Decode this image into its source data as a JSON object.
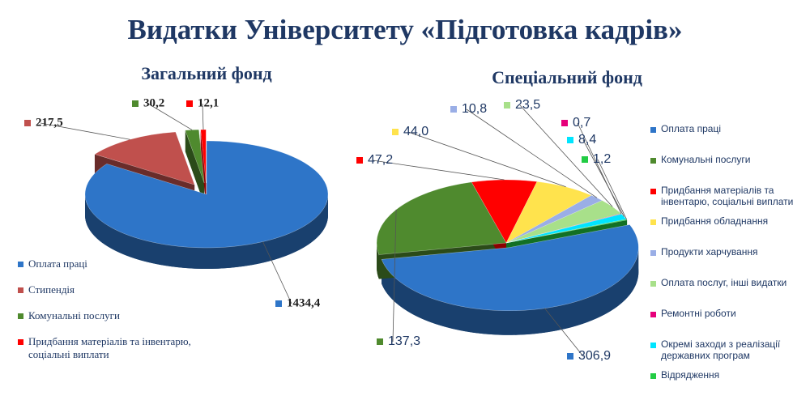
{
  "title": "Видатки Університету «Підготовка кадрів»",
  "chart_data": [
    {
      "type": "pie3d",
      "title": "Загальний фонд",
      "categories": [
        "Оплата праці",
        "Стипендія",
        "Комунальні послуги",
        "Придбання матеріалів та інвентарю,  соціальні виплати"
      ],
      "values": [
        1434.4,
        217.5,
        30.2,
        12.1
      ],
      "value_labels": [
        "1434,4",
        "217,5",
        "30,2",
        "12,1"
      ],
      "colors": [
        "#2e75c8",
        "#c0504d",
        "#4f8a2e",
        "#ff0000"
      ],
      "legend": "left"
    },
    {
      "type": "pie3d",
      "title": "Спеціальний фонд",
      "categories": [
        "Оплата праці",
        "Комунальні послуги",
        "Придбання матеріалів та інвентарю, соціальні виплати",
        "Придбання обладнання",
        "Продукти харчування",
        "Оплата послуг, інші видатки",
        "Ремонтні роботи",
        "Окремі заходи з реалізації державних програм",
        "Відрядження"
      ],
      "values": [
        306.9,
        137.3,
        47.2,
        44.0,
        10.8,
        23.5,
        0.7,
        8.4,
        1.2
      ],
      "value_labels": [
        "306,9",
        "137,3",
        "47,2",
        "44,0",
        "10,8",
        "23,5",
        "0,7",
        "8,4",
        "1,2"
      ],
      "colors": [
        "#2e75c8",
        "#4f8a2e",
        "#ff0000",
        "#ffe34d",
        "#9aaee6",
        "#a8e08a",
        "#e6007a",
        "#00e5ff",
        "#22cc44"
      ],
      "legend": "right"
    }
  ]
}
